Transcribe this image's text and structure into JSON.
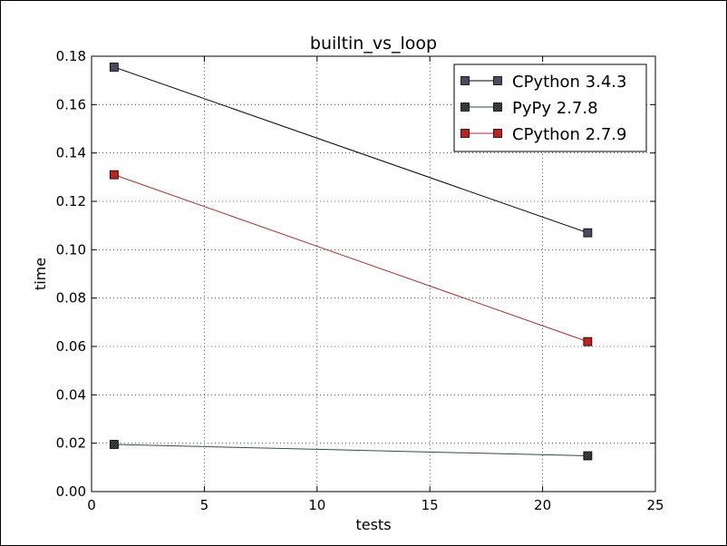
{
  "chart_data": {
    "type": "line",
    "title": "builtin_vs_loop",
    "xlabel": "tests",
    "ylabel": "time",
    "xlim": [
      0,
      25
    ],
    "ylim": [
      0.0,
      0.18
    ],
    "x_ticks": [
      0,
      5,
      10,
      15,
      20,
      25
    ],
    "y_ticks": [
      0.0,
      0.02,
      0.04,
      0.06,
      0.08,
      0.1,
      0.12,
      0.14,
      0.16,
      0.18
    ],
    "x_tick_labels": [
      "0",
      "5",
      "10",
      "15",
      "20",
      "25"
    ],
    "y_tick_labels": [
      "0.00",
      "0.02",
      "0.04",
      "0.06",
      "0.08",
      "0.10",
      "0.12",
      "0.14",
      "0.16",
      "0.18"
    ],
    "grid": true,
    "grid_style": "dotted",
    "legend_position": "top-right",
    "series": [
      {
        "name": "CPython 3.4.3",
        "x": [
          1,
          22
        ],
        "values": [
          0.1755,
          0.107
        ],
        "line_color": "#000000",
        "marker_color": "#4a4a5e",
        "marker": "square"
      },
      {
        "name": "PyPy 2.7.8",
        "x": [
          1,
          22
        ],
        "values": [
          0.0195,
          0.0148
        ],
        "line_color": "#2f4f3f",
        "marker_color": "#333333",
        "marker": "square-hatched"
      },
      {
        "name": "CPython 2.7.9",
        "x": [
          1,
          22
        ],
        "values": [
          0.131,
          0.062
        ],
        "line_color": "#a03030",
        "marker_color": "#c0201e",
        "marker": "square"
      }
    ]
  }
}
